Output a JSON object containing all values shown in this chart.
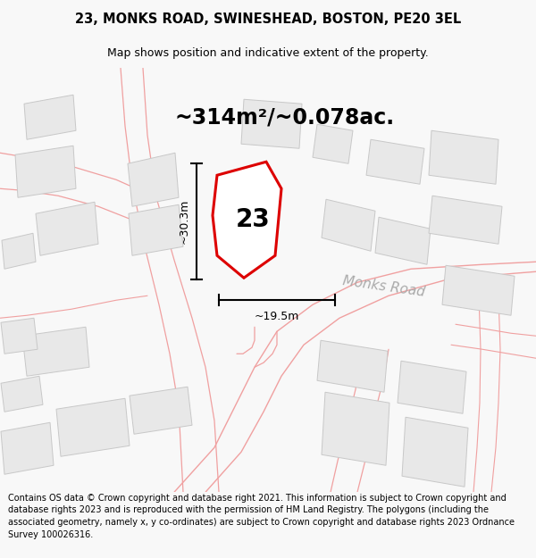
{
  "title": "23, MONKS ROAD, SWINESHEAD, BOSTON, PE20 3EL",
  "subtitle": "Map shows position and indicative extent of the property.",
  "area_label": "~314m²/~0.078ac.",
  "number_label": "23",
  "road_label": "Monks Road",
  "width_label": "~19.5m",
  "height_label": "~30.3m",
  "footer": "Contains OS data © Crown copyright and database right 2021. This information is subject to Crown copyright and database rights 2023 and is reproduced with the permission of HM Land Registry. The polygons (including the associated geometry, namely x, y co-ordinates) are subject to Crown copyright and database rights 2023 Ordnance Survey 100026316.",
  "bg_color": "#f8f8f8",
  "map_bg": "#f8f8f8",
  "bldg_fill": "#e8e8e8",
  "bldg_edge": "#c8c8c8",
  "road_line_color": "#f0a0a0",
  "road_fill": "#f0f0f0",
  "prop_fill": "#ffffff",
  "prop_edge": "#dd0000",
  "road_label_color": "#aaaaaa",
  "title_fontsize": 10.5,
  "subtitle_fontsize": 9,
  "area_fontsize": 17,
  "number_fontsize": 20,
  "road_label_fontsize": 11,
  "meas_fontsize": 9,
  "footer_fontsize": 7.0
}
